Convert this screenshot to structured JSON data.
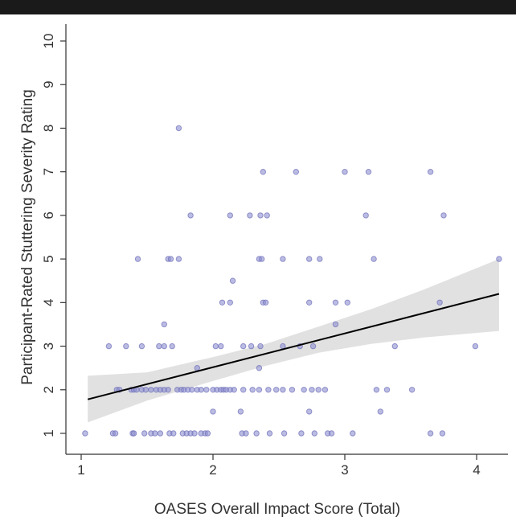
{
  "chart_data": {
    "type": "scatter",
    "title": "",
    "xlabel": "OASES Overall Impact Score (Total)",
    "ylabel": "Participant-Rated Stuttering Severity Rating",
    "xlim": [
      0.98,
      4.22
    ],
    "ylim": [
      0.55,
      10.35
    ],
    "x_ticks": [
      "1",
      "2",
      "3",
      "4"
    ],
    "y_ticks": [
      "1",
      "2",
      "3",
      "4",
      "5",
      "6",
      "7",
      "8",
      "9",
      "10"
    ],
    "grid": false,
    "legend": "none",
    "colors": {
      "point_fill": "#8e8fd0",
      "point_stroke": "#6d6eb8",
      "fit_line": "#000000",
      "confidence_band": "#d9d9d9",
      "axis": "#333333"
    },
    "points": [
      {
        "x": 1.03,
        "y": 1
      },
      {
        "x": 1.24,
        "y": 1
      },
      {
        "x": 1.26,
        "y": 1
      },
      {
        "x": 1.39,
        "y": 1
      },
      {
        "x": 1.4,
        "y": 1
      },
      {
        "x": 1.48,
        "y": 1
      },
      {
        "x": 1.53,
        "y": 1
      },
      {
        "x": 1.56,
        "y": 1
      },
      {
        "x": 1.6,
        "y": 1
      },
      {
        "x": 1.67,
        "y": 1
      },
      {
        "x": 1.7,
        "y": 1
      },
      {
        "x": 1.77,
        "y": 1
      },
      {
        "x": 1.8,
        "y": 1
      },
      {
        "x": 1.83,
        "y": 1
      },
      {
        "x": 1.86,
        "y": 1
      },
      {
        "x": 1.91,
        "y": 1
      },
      {
        "x": 1.94,
        "y": 1
      },
      {
        "x": 1.96,
        "y": 1
      },
      {
        "x": 2.22,
        "y": 1
      },
      {
        "x": 2.25,
        "y": 1
      },
      {
        "x": 2.33,
        "y": 1
      },
      {
        "x": 2.43,
        "y": 1
      },
      {
        "x": 2.54,
        "y": 1
      },
      {
        "x": 2.67,
        "y": 1
      },
      {
        "x": 2.77,
        "y": 1
      },
      {
        "x": 2.87,
        "y": 1
      },
      {
        "x": 2.9,
        "y": 1
      },
      {
        "x": 3.06,
        "y": 1
      },
      {
        "x": 3.65,
        "y": 1
      },
      {
        "x": 3.74,
        "y": 1
      },
      {
        "x": 2.0,
        "y": 1.5
      },
      {
        "x": 2.21,
        "y": 1.5
      },
      {
        "x": 2.73,
        "y": 1.5
      },
      {
        "x": 3.27,
        "y": 1.5
      },
      {
        "x": 1.27,
        "y": 2
      },
      {
        "x": 1.29,
        "y": 2
      },
      {
        "x": 1.38,
        "y": 2
      },
      {
        "x": 1.4,
        "y": 2
      },
      {
        "x": 1.42,
        "y": 2
      },
      {
        "x": 1.46,
        "y": 2
      },
      {
        "x": 1.49,
        "y": 2
      },
      {
        "x": 1.53,
        "y": 2
      },
      {
        "x": 1.57,
        "y": 2
      },
      {
        "x": 1.6,
        "y": 2
      },
      {
        "x": 1.63,
        "y": 2
      },
      {
        "x": 1.66,
        "y": 2
      },
      {
        "x": 1.73,
        "y": 2
      },
      {
        "x": 1.76,
        "y": 2
      },
      {
        "x": 1.78,
        "y": 2
      },
      {
        "x": 1.81,
        "y": 2
      },
      {
        "x": 1.84,
        "y": 2
      },
      {
        "x": 1.88,
        "y": 2
      },
      {
        "x": 1.91,
        "y": 2
      },
      {
        "x": 1.95,
        "y": 2
      },
      {
        "x": 2.0,
        "y": 2
      },
      {
        "x": 2.03,
        "y": 2
      },
      {
        "x": 2.06,
        "y": 2
      },
      {
        "x": 2.08,
        "y": 2
      },
      {
        "x": 2.1,
        "y": 2
      },
      {
        "x": 2.13,
        "y": 2
      },
      {
        "x": 2.16,
        "y": 2
      },
      {
        "x": 2.23,
        "y": 2
      },
      {
        "x": 2.3,
        "y": 2
      },
      {
        "x": 2.35,
        "y": 2
      },
      {
        "x": 2.42,
        "y": 2
      },
      {
        "x": 2.48,
        "y": 2
      },
      {
        "x": 2.53,
        "y": 2
      },
      {
        "x": 2.6,
        "y": 2
      },
      {
        "x": 2.69,
        "y": 2
      },
      {
        "x": 2.75,
        "y": 2
      },
      {
        "x": 2.8,
        "y": 2
      },
      {
        "x": 2.85,
        "y": 2
      },
      {
        "x": 3.24,
        "y": 2
      },
      {
        "x": 3.32,
        "y": 2
      },
      {
        "x": 3.51,
        "y": 2
      },
      {
        "x": 1.88,
        "y": 2.5
      },
      {
        "x": 2.35,
        "y": 2.5
      },
      {
        "x": 1.21,
        "y": 3
      },
      {
        "x": 1.34,
        "y": 3
      },
      {
        "x": 1.46,
        "y": 3
      },
      {
        "x": 1.59,
        "y": 3
      },
      {
        "x": 1.63,
        "y": 3
      },
      {
        "x": 1.69,
        "y": 3
      },
      {
        "x": 2.02,
        "y": 3
      },
      {
        "x": 2.06,
        "y": 3
      },
      {
        "x": 2.23,
        "y": 3
      },
      {
        "x": 2.29,
        "y": 3
      },
      {
        "x": 2.36,
        "y": 3
      },
      {
        "x": 2.53,
        "y": 3
      },
      {
        "x": 2.66,
        "y": 3
      },
      {
        "x": 2.76,
        "y": 3
      },
      {
        "x": 3.38,
        "y": 3
      },
      {
        "x": 3.99,
        "y": 3
      },
      {
        "x": 1.63,
        "y": 3.5
      },
      {
        "x": 2.93,
        "y": 3.5
      },
      {
        "x": 2.07,
        "y": 4
      },
      {
        "x": 2.13,
        "y": 4
      },
      {
        "x": 2.38,
        "y": 4
      },
      {
        "x": 2.4,
        "y": 4
      },
      {
        "x": 2.73,
        "y": 4
      },
      {
        "x": 2.93,
        "y": 4
      },
      {
        "x": 3.02,
        "y": 4
      },
      {
        "x": 3.72,
        "y": 4
      },
      {
        "x": 2.15,
        "y": 4.5
      },
      {
        "x": 1.43,
        "y": 5
      },
      {
        "x": 1.66,
        "y": 5
      },
      {
        "x": 1.68,
        "y": 5
      },
      {
        "x": 1.74,
        "y": 5
      },
      {
        "x": 2.35,
        "y": 5
      },
      {
        "x": 2.37,
        "y": 5
      },
      {
        "x": 2.53,
        "y": 5
      },
      {
        "x": 2.73,
        "y": 5
      },
      {
        "x": 2.81,
        "y": 5
      },
      {
        "x": 3.22,
        "y": 5
      },
      {
        "x": 4.17,
        "y": 5
      },
      {
        "x": 1.83,
        "y": 6
      },
      {
        "x": 2.13,
        "y": 6
      },
      {
        "x": 2.28,
        "y": 6
      },
      {
        "x": 2.36,
        "y": 6
      },
      {
        "x": 2.41,
        "y": 6
      },
      {
        "x": 3.16,
        "y": 6
      },
      {
        "x": 3.75,
        "y": 6
      },
      {
        "x": 2.38,
        "y": 7
      },
      {
        "x": 2.63,
        "y": 7
      },
      {
        "x": 3.0,
        "y": 7
      },
      {
        "x": 3.18,
        "y": 7
      },
      {
        "x": 3.65,
        "y": 7
      },
      {
        "x": 1.74,
        "y": 8
      }
    ],
    "fit_line": {
      "x": [
        1.05,
        4.17
      ],
      "y": [
        1.78,
        4.2
      ]
    },
    "confidence_band": {
      "x": [
        1.05,
        1.5,
        2.0,
        2.4,
        2.8,
        3.2,
        3.6,
        4.17
      ],
      "lower": [
        1.25,
        1.75,
        2.2,
        2.55,
        2.85,
        3.05,
        3.2,
        3.35
      ],
      "upper": [
        2.32,
        2.4,
        2.75,
        3.05,
        3.45,
        3.85,
        4.3,
        5.0
      ]
    }
  }
}
